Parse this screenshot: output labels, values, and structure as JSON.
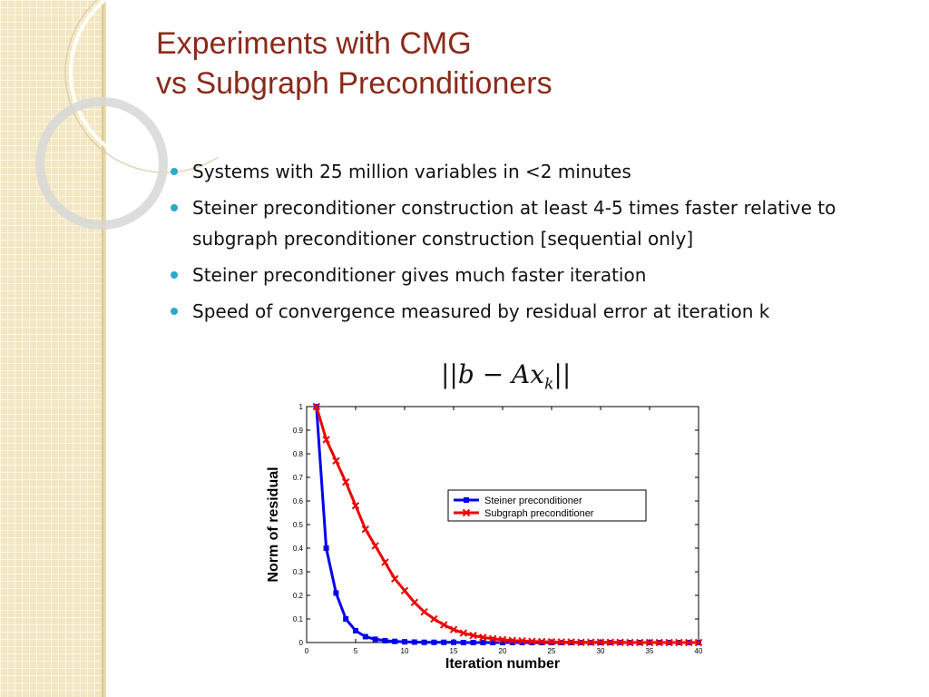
{
  "slide": {
    "title_line1": "Experiments with CMG",
    "title_line2": "vs Subgraph Preconditioners",
    "accent_color": "#8b2a1a",
    "bullet_color": "#2ea8c9",
    "bullets": [
      "Systems with 25 million variables in <2 minutes",
      "Steiner preconditioner construction  at least 4-5 times faster relative to subgraph preconditioner construction [sequential only]",
      "Steiner preconditioner gives much faster iteration",
      "Speed of convergence measured by residual error at iteration k"
    ],
    "formula": {
      "main": "||b − Ax",
      "sub": "k",
      "end": "||"
    }
  },
  "chart_data": {
    "type": "line",
    "xlabel": "Iteration number",
    "ylabel": "Norm of residual",
    "xlim": [
      0,
      40
    ],
    "ylim": [
      0,
      1
    ],
    "xticks": [
      "0",
      "5",
      "10",
      "15",
      "20",
      "25",
      "30",
      "35",
      "40"
    ],
    "yticks": [
      "0",
      "0.1",
      "0.2",
      "0.3",
      "0.4",
      "0.5",
      "0.6",
      "0.7",
      "0.8",
      "0.9",
      "1"
    ],
    "legend_position": "top-right",
    "grid": false,
    "x": [
      1,
      2,
      3,
      4,
      5,
      6,
      7,
      8,
      9,
      10,
      11,
      12,
      13,
      14,
      15,
      16,
      17,
      18,
      19,
      20,
      21,
      22,
      23,
      24,
      25,
      26,
      27,
      28,
      29,
      30,
      31,
      32,
      33,
      34,
      35,
      36,
      37,
      38,
      39,
      40
    ],
    "series": [
      {
        "name": "Steiner preconditioner",
        "color": "#0000ee",
        "marker": "square",
        "values": [
          1.0,
          0.4,
          0.21,
          0.1,
          0.05,
          0.025,
          0.014,
          0.008,
          0.005,
          0.003,
          0.002,
          0.001,
          0.001,
          0.001,
          0.001,
          0.0,
          0.0,
          0.0,
          0.0,
          0.0,
          0.0,
          0.0,
          0.0,
          0.0,
          0.0,
          0.0,
          0.0,
          0.0,
          0.0,
          0.0,
          0.0,
          0.0,
          0.0,
          0.0,
          0.0,
          0.0,
          0.0,
          0.0,
          0.0,
          0.0
        ]
      },
      {
        "name": "Subgraph preconditioner",
        "color": "#ee0000",
        "marker": "x",
        "values": [
          1.0,
          0.86,
          0.77,
          0.68,
          0.58,
          0.48,
          0.41,
          0.34,
          0.27,
          0.22,
          0.17,
          0.13,
          0.1,
          0.075,
          0.055,
          0.04,
          0.03,
          0.022,
          0.016,
          0.012,
          0.009,
          0.007,
          0.005,
          0.004,
          0.003,
          0.002,
          0.002,
          0.001,
          0.001,
          0.001,
          0.001,
          0.001,
          0.0,
          0.0,
          0.0,
          0.0,
          0.0,
          0.0,
          0.0,
          0.0
        ]
      }
    ]
  }
}
